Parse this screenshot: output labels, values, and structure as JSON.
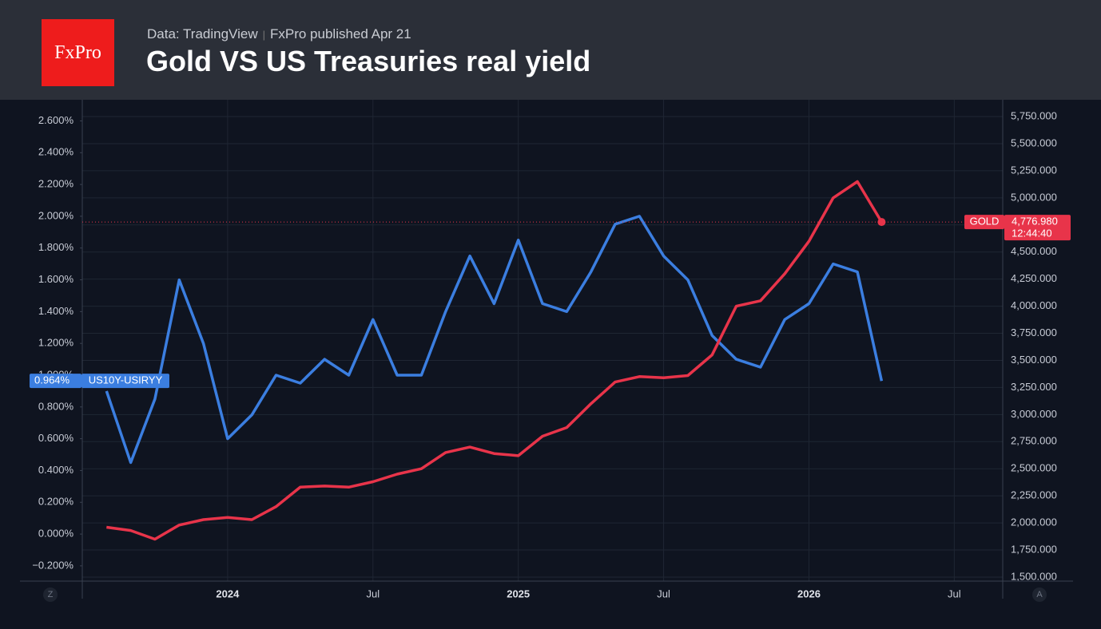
{
  "header": {
    "logo": "FxPro",
    "source": "Data: TradingView",
    "published": "FxPro published Apr 21"
  },
  "chart_data": {
    "type": "line",
    "title": "Gold VS US Treasuries real yield",
    "x": [
      "2023-08",
      "2023-09",
      "2023-10",
      "2023-11",
      "2023-12",
      "2024-01",
      "2024-02",
      "2024-03",
      "2024-04",
      "2024-05",
      "2024-06",
      "2024-07",
      "2024-08",
      "2024-09",
      "2024-10",
      "2024-11",
      "2024-12",
      "2025-01",
      "2025-02",
      "2025-03",
      "2025-04",
      "2025-05",
      "2025-06",
      "2025-07",
      "2025-08",
      "2025-09",
      "2025-10",
      "2025-11",
      "2025-12",
      "2026-01",
      "2026-02",
      "2026-03",
      "2026-04"
    ],
    "series": [
      {
        "name": "US10Y-USIRYY",
        "color": "#3b7ee0",
        "axis": "y",
        "values": [
          0.9,
          0.45,
          0.85,
          1.6,
          1.2,
          0.6,
          0.75,
          1.0,
          0.95,
          1.1,
          1.0,
          1.35,
          1.0,
          1.0,
          1.4,
          1.75,
          1.45,
          1.85,
          1.45,
          1.4,
          1.65,
          1.95,
          2.0,
          1.75,
          1.6,
          1.25,
          1.1,
          1.05,
          1.35,
          1.45,
          1.7,
          1.65,
          0.964
        ],
        "value_labels": [
          null,
          null,
          null,
          null,
          null,
          null,
          null,
          null,
          null,
          null,
          null,
          null,
          null,
          null,
          null,
          null,
          null,
          null,
          null,
          null,
          null,
          null,
          null,
          null,
          null,
          null,
          null,
          null,
          null,
          null,
          null,
          null,
          "0.964%"
        ]
      },
      {
        "name": "GOLD",
        "color": "#e8344a",
        "axis": "y2",
        "values": [
          1960,
          1930,
          1850,
          1980,
          2030,
          2050,
          2030,
          2150,
          2330,
          2340,
          2330,
          2380,
          2450,
          2500,
          2650,
          2700,
          2640,
          2620,
          2800,
          2880,
          3100,
          3300,
          3350,
          3340,
          3360,
          3550,
          4000,
          4050,
          4300,
          4600,
          5000,
          5150,
          4776.98
        ],
        "value_labels": [
          null,
          null,
          null,
          null,
          null,
          null,
          null,
          null,
          null,
          null,
          null,
          null,
          null,
          null,
          null,
          null,
          null,
          null,
          null,
          null,
          null,
          null,
          null,
          null,
          null,
          null,
          null,
          null,
          null,
          null,
          null,
          null,
          "4,776.980"
        ]
      }
    ],
    "countdown": "12:44:40",
    "xlim": [
      "2023-07",
      "2026-09"
    ],
    "xticks": [
      {
        "value": "2024-01",
        "label": "2024"
      },
      {
        "value": "2024-07",
        "label": "Jul"
      },
      {
        "value": "2025-01",
        "label": "2025"
      },
      {
        "value": "2025-07",
        "label": "Jul"
      },
      {
        "value": "2026-01",
        "label": "2026"
      },
      {
        "value": "2026-07",
        "label": "Jul"
      }
    ],
    "ylim": [
      -0.296,
      2.733
    ],
    "yticks": [
      {
        "value": -0.2,
        "label": "−0.200%"
      },
      {
        "value": 0,
        "label": "0.000%"
      },
      {
        "value": 0.2,
        "label": "0.200%"
      },
      {
        "value": 0.4,
        "label": "0.400%"
      },
      {
        "value": 0.6,
        "label": "0.600%"
      },
      {
        "value": 0.8,
        "label": "0.800%"
      },
      {
        "value": 1.0,
        "label": "1.000%"
      },
      {
        "value": 1.2,
        "label": "1.200%"
      },
      {
        "value": 1.4,
        "label": "1.400%"
      },
      {
        "value": 1.6,
        "label": "1.600%"
      },
      {
        "value": 1.8,
        "label": "1.800%"
      },
      {
        "value": 2.0,
        "label": "2.000%"
      },
      {
        "value": 2.2,
        "label": "2.200%"
      },
      {
        "value": 2.4,
        "label": "2.400%"
      },
      {
        "value": 2.6,
        "label": "2.600%"
      }
    ],
    "y2lim": [
      1463,
      5905
    ],
    "y2ticks": [
      {
        "value": 1500,
        "label": "1,500.000"
      },
      {
        "value": 1750,
        "label": "1,750.000"
      },
      {
        "value": 2000,
        "label": "2,000.000"
      },
      {
        "value": 2250,
        "label": "2,250.000"
      },
      {
        "value": 2500,
        "label": "2,500.000"
      },
      {
        "value": 2750,
        "label": "2,750.000"
      },
      {
        "value": 3000,
        "label": "3,000.000"
      },
      {
        "value": 3250,
        "label": "3,250.000"
      },
      {
        "value": 3500,
        "label": "3,500.000"
      },
      {
        "value": 3750,
        "label": "3,750.000"
      },
      {
        "value": 4000,
        "label": "4,000.000"
      },
      {
        "value": 4250,
        "label": "4,250.000"
      },
      {
        "value": 4500,
        "label": "4,500.000"
      },
      {
        "value": 4750,
        "label": "4,750.000"
      },
      {
        "value": 5000,
        "label": "5,000.000"
      },
      {
        "value": 5250,
        "label": "5,250.000"
      },
      {
        "value": 5500,
        "label": "5,500.000"
      },
      {
        "value": 5750,
        "label": "5,750.000"
      }
    ],
    "grid": true,
    "axis_buttons": [
      "Z",
      "A"
    ]
  }
}
